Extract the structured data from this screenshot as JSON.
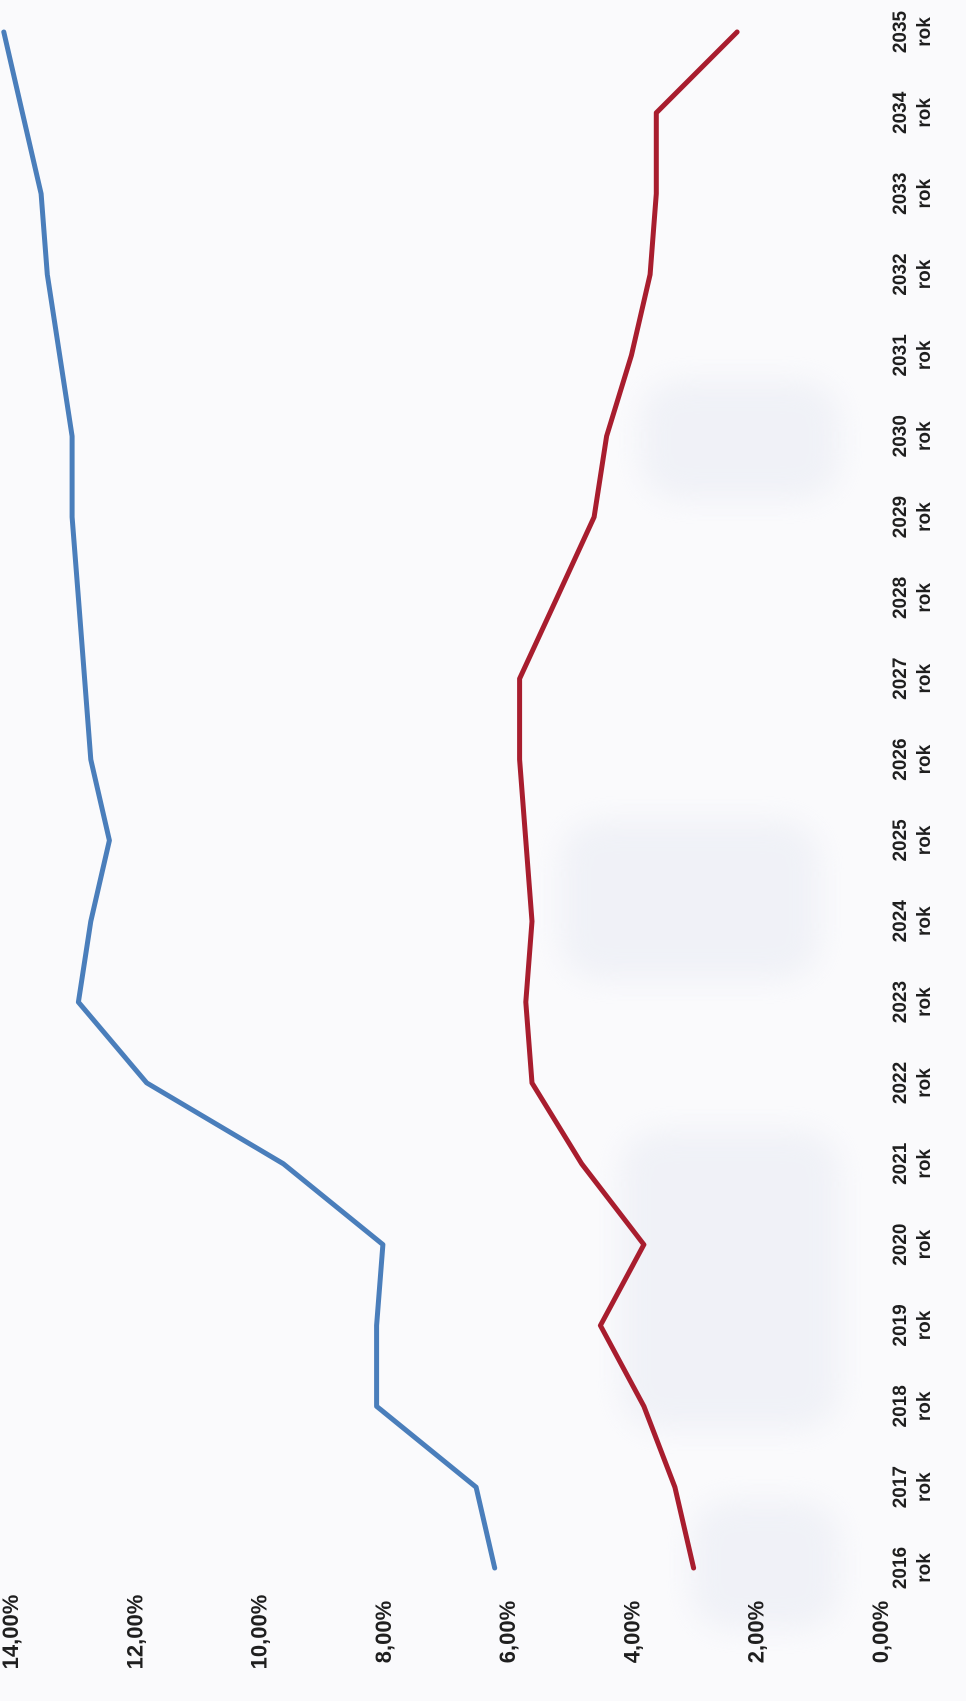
{
  "chart_data": {
    "type": "line",
    "orientation": "rotated-90-ccw",
    "title": "",
    "xlabel": "",
    "ylabel": "",
    "categories": [
      "2016",
      "2017",
      "2018",
      "2019",
      "2020",
      "2021",
      "2022",
      "2023",
      "2024",
      "2025",
      "2026",
      "2027",
      "2028",
      "2029",
      "2030",
      "2031",
      "2032",
      "2033",
      "2034",
      "2035"
    ],
    "category_suffix": "rok",
    "y_ticks": [
      "0,00%",
      "2,00%",
      "4,00%",
      "6,00%",
      "8,00%",
      "10,00%",
      "12,00%",
      "14,00%"
    ],
    "y_tick_values": [
      0,
      2,
      4,
      6,
      8,
      10,
      12,
      14
    ],
    "ylim": [
      0,
      14
    ],
    "grid": false,
    "legend": "none",
    "series": [
      {
        "color": "#4a7ebb",
        "values": [
          6.2,
          6.5,
          8.1,
          8.1,
          8.0,
          9.6,
          11.8,
          12.9,
          12.7,
          12.4,
          12.7,
          12.8,
          12.9,
          13.0,
          13.0,
          13.2,
          13.4,
          13.5,
          13.8,
          14.1
        ]
      },
      {
        "color": "#a81d2e",
        "values": [
          3.0,
          3.3,
          3.8,
          4.5,
          3.8,
          4.8,
          5.6,
          5.7,
          5.6,
          5.7,
          5.8,
          5.8,
          5.2,
          4.6,
          4.4,
          4.0,
          3.7,
          3.6,
          3.6,
          2.3
        ]
      }
    ]
  }
}
